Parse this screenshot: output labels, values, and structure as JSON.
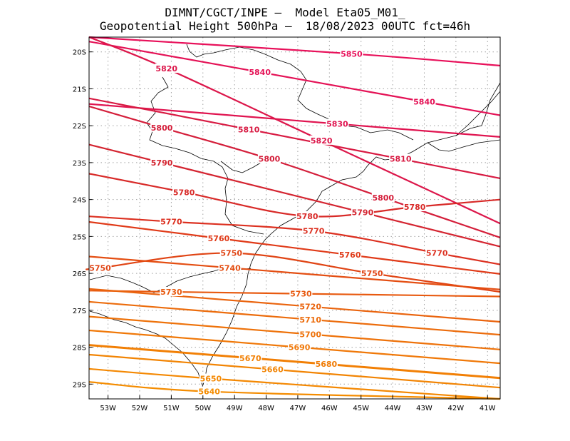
{
  "title": {
    "line1": "DIMNT/CGCT/INPE –  Model Eta05_M01_",
    "line2": "Geopotential Height 500hPa –  18/08/2023 00UTC fct=46h"
  },
  "map": {
    "lat_ticks": [
      "20S",
      "21S",
      "22S",
      "23S",
      "24S",
      "25S",
      "26S",
      "27S",
      "28S",
      "29S"
    ],
    "lon_ticks": [
      "53W",
      "52W",
      "51W",
      "50W",
      "49W",
      "48W",
      "47W",
      "46W",
      "45W",
      "44W",
      "43W",
      "42W",
      "41W"
    ],
    "lat_range": [
      -29.4,
      -19.6
    ],
    "lon_range": [
      -53.6,
      -40.6
    ],
    "grid": "dotted"
  },
  "contours": [
    {
      "value": 5850,
      "color": "#e8105a",
      "labels": [
        {
          "text": "5850",
          "lon": -45.3,
          "lat": -20.05
        }
      ]
    },
    {
      "value": 5840,
      "color": "#e41256",
      "labels": [
        {
          "text": "5840",
          "lon": -48.2,
          "lat": -20.55
        },
        {
          "text": "5840",
          "lon": -43.0,
          "lat": -21.35
        }
      ]
    },
    {
      "value": 5830,
      "color": "#e01450",
      "labels": [
        {
          "text": "5830",
          "lon": -45.75,
          "lat": -21.95
        }
      ]
    },
    {
      "value": 5820,
      "color": "#dc164a",
      "labels": [
        {
          "text": "5820",
          "lon": -51.15,
          "lat": -20.45
        },
        {
          "text": "5820",
          "lon": -46.25,
          "lat": -22.4
        }
      ]
    },
    {
      "value": 5810,
      "color": "#d81a42",
      "labels": [
        {
          "text": "5810",
          "lon": -48.55,
          "lat": -22.1
        },
        {
          "text": "5810",
          "lon": -43.75,
          "lat": -22.9
        }
      ]
    },
    {
      "value": 5800,
      "color": "#d41e3a",
      "labels": [
        {
          "text": "5800",
          "lon": -51.3,
          "lat": -22.05
        },
        {
          "text": "5800",
          "lon": -47.9,
          "lat": -22.9
        },
        {
          "text": "5800",
          "lon": -44.3,
          "lat": -23.95
        }
      ]
    },
    {
      "value": 5790,
      "color": "#d42430",
      "labels": [
        {
          "text": "5790",
          "lon": -51.3,
          "lat": -23.0
        },
        {
          "text": "5790",
          "lon": -44.95,
          "lat": -24.35
        }
      ]
    },
    {
      "value": 5780,
      "color": "#d82a28",
      "labels": [
        {
          "text": "5780",
          "lon": -50.6,
          "lat": -23.8
        },
        {
          "text": "5780",
          "lon": -46.7,
          "lat": -24.45
        },
        {
          "text": "5780",
          "lon": -43.3,
          "lat": -24.2
        }
      ]
    },
    {
      "value": 5770,
      "color": "#dc3020",
      "labels": [
        {
          "text": "5770",
          "lon": -51.0,
          "lat": -24.6
        },
        {
          "text": "5770",
          "lon": -46.5,
          "lat": -24.85
        },
        {
          "text": "5770",
          "lon": -42.6,
          "lat": -25.45
        }
      ]
    },
    {
      "value": 5760,
      "color": "#e03a18",
      "labels": [
        {
          "text": "5760",
          "lon": -49.5,
          "lat": -25.05
        },
        {
          "text": "5760",
          "lon": -45.35,
          "lat": -25.5
        }
      ]
    },
    {
      "value": 5750,
      "color": "#e04414",
      "labels": [
        {
          "text": "5750",
          "lon": -53.25,
          "lat": -25.85
        },
        {
          "text": "5750",
          "lon": -49.1,
          "lat": -25.45
        },
        {
          "text": "5750",
          "lon": -44.65,
          "lat": -26.0
        }
      ]
    },
    {
      "value": 5740,
      "color": "#e44e12",
      "labels": [
        {
          "text": "5740",
          "lon": -49.15,
          "lat": -25.85
        }
      ]
    },
    {
      "value": 5730,
      "color": "#e85a10",
      "labels": [
        {
          "text": "5730",
          "lon": -51.0,
          "lat": -26.5
        },
        {
          "text": "5730",
          "lon": -46.9,
          "lat": -26.55
        }
      ]
    },
    {
      "value": 5720,
      "color": "#ea640e",
      "labels": [
        {
          "text": "5720",
          "lon": -46.6,
          "lat": -26.9
        }
      ]
    },
    {
      "value": 5710,
      "color": "#ec6c0c",
      "labels": [
        {
          "text": "5710",
          "lon": -46.6,
          "lat": -27.25
        }
      ]
    },
    {
      "value": 5700,
      "color": "#ee720a",
      "labels": [
        {
          "text": "5700",
          "lon": -46.6,
          "lat": -27.65
        }
      ]
    },
    {
      "value": 5690,
      "color": "#f07808",
      "labels": [
        {
          "text": "5690",
          "lon": -46.95,
          "lat": -28.0
        }
      ]
    },
    {
      "value": 5680,
      "color": "#f07c06",
      "labels": [
        {
          "text": "5680",
          "lon": -46.1,
          "lat": -28.45
        }
      ]
    },
    {
      "value": 5670,
      "color": "#f28004",
      "labels": [
        {
          "text": "5670",
          "lon": -48.5,
          "lat": -28.3
        }
      ]
    },
    {
      "value": 5660,
      "color": "#f28403",
      "labels": [
        {
          "text": "5660",
          "lon": -47.8,
          "lat": -28.6
        }
      ]
    },
    {
      "value": 5650,
      "color": "#f48802",
      "labels": [
        {
          "text": "5650",
          "lon": -49.75,
          "lat": -28.85
        }
      ]
    },
    {
      "value": 5640,
      "color": "#f48c00",
      "labels": [
        {
          "text": "5640",
          "lon": -49.8,
          "lat": -29.2
        }
      ]
    }
  ]
}
